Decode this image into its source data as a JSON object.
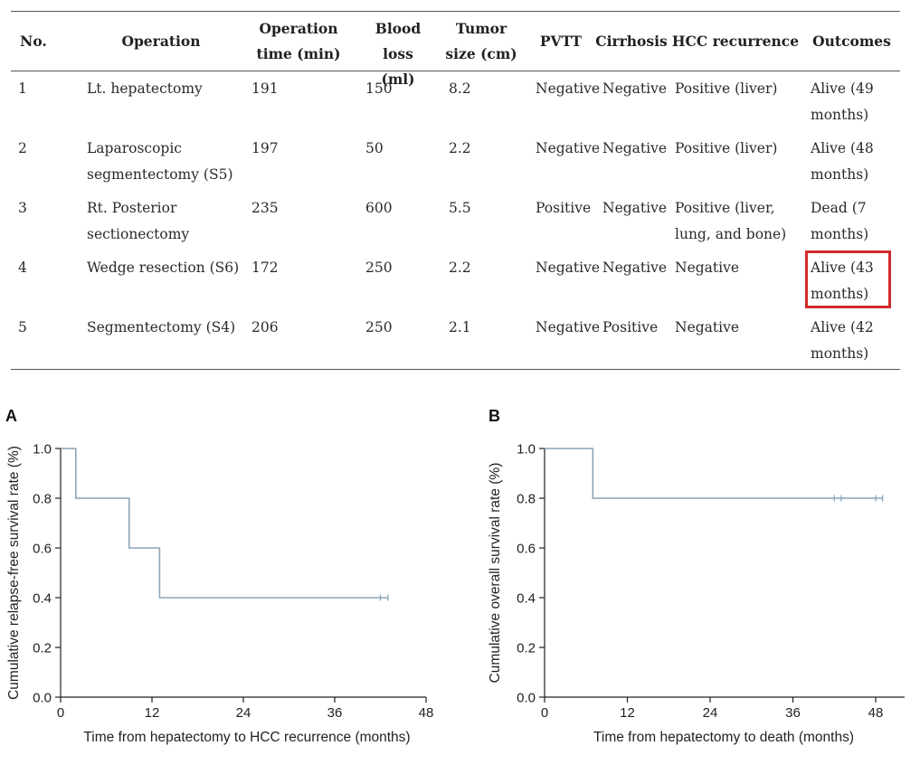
{
  "table": {
    "columns": [
      "No.",
      "Operation",
      "Operation time (min)",
      "Blood loss (ml)",
      "Tumor size (cm)",
      "PVTT",
      "Cirrhosis",
      "HCC recurrence",
      "Outcomes"
    ],
    "header_lines": [
      [
        "No."
      ],
      [
        "Operation"
      ],
      [
        "Operation",
        "time (min)"
      ],
      [
        "Blood loss",
        "(ml)"
      ],
      [
        "Tumor",
        "size (cm)"
      ],
      [
        "PVTT"
      ],
      [
        "Cirrhosis"
      ],
      [
        "HCC recurrence"
      ],
      [
        "Outcomes"
      ]
    ],
    "rows": [
      [
        "1",
        "Lt. hepatectomy",
        "191",
        "150",
        "8.2",
        "Negative",
        "Negative",
        "Positive (liver)",
        "Alive (49 months)"
      ],
      [
        "2",
        "Laparoscopic segmentectomy (S5)",
        "197",
        "50",
        "2.2",
        "Negative",
        "Negative",
        "Positive (liver)",
        "Alive (48 months)"
      ],
      [
        "3",
        "Rt. Posterior sectionectomy",
        "235",
        "600",
        "5.5",
        "Positive",
        "Negative",
        "Positive (liver, lung, and bone)",
        "Dead (7 months)"
      ],
      [
        "4",
        "Wedge resection (S6)",
        "172",
        "250",
        "2.2",
        "Negative",
        "Negative",
        "Negative",
        "Alive (43 months)"
      ],
      [
        "5",
        "Segmentectomy (S4)",
        "206",
        "250",
        "2.1",
        "Negative",
        "Positive",
        "Negative",
        "Alive (42 months)"
      ]
    ],
    "highlight": {
      "row": 3,
      "col": 8,
      "color": "#d42a2a"
    }
  },
  "chart_data": [
    {
      "type": "line",
      "panel": "A",
      "curve": "kaplan-meier-step",
      "xlabel": "Time from hepatectomy to HCC recurrence (months)",
      "ylabel": "Cumulative relapse-free survival rate (%)",
      "xlim": [
        0,
        48
      ],
      "ylim": [
        0,
        1.0
      ],
      "xticks": [
        0,
        12,
        24,
        36,
        48
      ],
      "yticks": [
        0.0,
        0.2,
        0.4,
        0.6,
        0.8,
        1.0
      ],
      "xtick_labels": [
        "0",
        "12",
        "24",
        "36",
        "48"
      ],
      "ytick_labels": [
        "0.0",
        "0.2",
        "0.4",
        "0.6",
        "0.8",
        "1.0"
      ],
      "steps": [
        [
          0,
          1.0
        ],
        [
          2,
          0.8
        ],
        [
          9,
          0.6
        ],
        [
          13,
          0.4
        ]
      ],
      "end_x": 43,
      "censored": [
        [
          42,
          0.4
        ],
        [
          43,
          0.4
        ]
      ],
      "color": "#8aa4b8"
    },
    {
      "type": "line",
      "panel": "B",
      "curve": "kaplan-meier-step",
      "xlabel": "Time from hepatectomy to death (months)",
      "ylabel": "Cumulative overall survival rate (%)",
      "xlim": [
        0,
        48
      ],
      "ylim": [
        0,
        1.0
      ],
      "xticks": [
        0,
        12,
        24,
        36,
        48
      ],
      "yticks": [
        0.0,
        0.2,
        0.4,
        0.6,
        0.8,
        1.0
      ],
      "xtick_labels": [
        "0",
        "12",
        "24",
        "36",
        "48"
      ],
      "ytick_labels": [
        "0.0",
        "0.2",
        "0.4",
        "0.6",
        "0.8",
        "1.0"
      ],
      "steps": [
        [
          0,
          1.0
        ],
        [
          7,
          0.8
        ]
      ],
      "end_x": 49,
      "censored": [
        [
          42,
          0.8
        ],
        [
          43,
          0.8
        ],
        [
          48,
          0.8
        ],
        [
          49,
          0.8
        ]
      ],
      "color": "#8aa4b8"
    }
  ]
}
